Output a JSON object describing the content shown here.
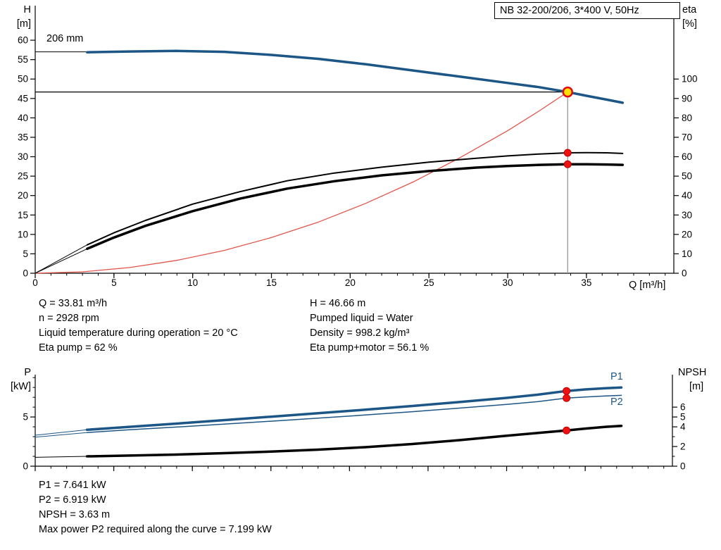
{
  "title_box": "NB 32-200/206, 3*400 V, 50Hz",
  "labels": {
    "impeller": "206 mm",
    "p1": "P1",
    "p2": "P2",
    "axis_h_top": "H",
    "axis_h_unit": "[m]",
    "axis_eta_top": "eta",
    "axis_eta_unit": "[%]",
    "axis_q": "Q [m³/h]",
    "axis_p_top": "P",
    "axis_p_unit": "[kW]",
    "axis_npsh_top": "NPSH",
    "axis_npsh_unit": "[m]"
  },
  "info_left": [
    "Q = 33.81 m³/h",
    "n = 2928 rpm",
    "Liquid temperature during operation = 20 °C",
    "Eta pump = 62 %"
  ],
  "info_right": [
    "H = 46.66 m",
    "Pumped liquid = Water",
    "Density = 998.2 kg/m³",
    "Eta pump+motor = 56.1 %"
  ],
  "info_bottom": [
    "P1 = 7.641 kW",
    "P2 = 6.919 kW",
    "NPSH = 3.63 m",
    "Max power P2 required along the curve = 7.199 kW"
  ],
  "colors": {
    "curve_blue": "#1c5687",
    "curve_black": "#000000",
    "curve_red": "#e2554b",
    "marker_red": "#ee1111",
    "marker_red_stroke": "#c00000",
    "marker_yellow": "#ffe000",
    "marker_yellow_stroke": "#e30613",
    "guide_gray": "#909090"
  },
  "chart_data": [
    {
      "id": "top",
      "type": "line",
      "title": "NB 32-200/206, 3*400 V, 50Hz",
      "x_axis": {
        "label": "Q [m³/h]",
        "range": [
          0,
          40.55
        ],
        "major_ticks": [
          0,
          5,
          10,
          15,
          20,
          25,
          30,
          35
        ],
        "minor_step": 1,
        "show_labels": true
      },
      "y_left": {
        "label": "H [m]",
        "range": [
          0,
          68.9
        ],
        "ticks": [
          0,
          5,
          10,
          15,
          20,
          25,
          30,
          35,
          40,
          45,
          50,
          55,
          60
        ]
      },
      "y_right": {
        "label": "eta [%]",
        "range": [
          0,
          137.8
        ],
        "ticks": [
          0,
          10,
          20,
          30,
          40,
          50,
          60,
          70,
          80,
          90,
          100
        ]
      },
      "grid": false,
      "duty_point": {
        "Q": 33.81,
        "H": 46.66,
        "eta_pump": 62,
        "eta_pump_motor": 56.1,
        "impeller": "206 mm"
      },
      "guides": [
        {
          "type": "h",
          "value": 46.66,
          "from": 0,
          "to": 33.81,
          "color": "#000000",
          "width": 1.2
        },
        {
          "type": "v",
          "value": 33.81,
          "from": 0,
          "to": 46.66,
          "color": "#909090",
          "width": 1.2
        }
      ],
      "series": [
        {
          "name": "head-leadin",
          "axis": "left",
          "color": "#000000",
          "width": 1,
          "points": [
            [
              0,
              57
            ],
            [
              3.3,
              57
            ]
          ]
        },
        {
          "name": "system-curve",
          "axis": "left",
          "color": "#e2554b",
          "width": 1.3,
          "points": [
            [
              0,
              0
            ],
            [
              3,
              0.37
            ],
            [
              6,
              1.47
            ],
            [
              9,
              3.31
            ],
            [
              12,
              5.88
            ],
            [
              15,
              9.19
            ],
            [
              18,
              13.2
            ],
            [
              21,
              18.0
            ],
            [
              24,
              23.5
            ],
            [
              27,
              29.8
            ],
            [
              30,
              36.7
            ],
            [
              32,
              41.8
            ],
            [
              33.81,
              46.66
            ]
          ]
        },
        {
          "name": "eta-pump-leadin",
          "axis": "left",
          "color": "#000000",
          "width": 1,
          "points": [
            [
              0,
              0
            ],
            [
              3.3,
              7.3
            ]
          ]
        },
        {
          "name": "eta-pump-motor-leadin",
          "axis": "left",
          "color": "#000000",
          "width": 1,
          "points": [
            [
              0,
              0
            ],
            [
              3.3,
              6.3
            ]
          ]
        },
        {
          "name": "eta-pump",
          "axis": "left",
          "color": "#000000",
          "width": 2,
          "points": [
            [
              3.3,
              7.3
            ],
            [
              5,
              10.4
            ],
            [
              7,
              13.6
            ],
            [
              10,
              17.8
            ],
            [
              13,
              21.0
            ],
            [
              16,
              23.8
            ],
            [
              19,
              25.8
            ],
            [
              22,
              27.3
            ],
            [
              25,
              28.6
            ],
            [
              28,
              29.6
            ],
            [
              30,
              30.2
            ],
            [
              32,
              30.7
            ],
            [
              33.81,
              31.0
            ],
            [
              35,
              31.05
            ],
            [
              36.3,
              31.0
            ],
            [
              37.3,
              30.85
            ]
          ]
        },
        {
          "name": "eta-pump-motor",
          "axis": "left",
          "color": "#000000",
          "width": 3.5,
          "points": [
            [
              3.3,
              6.3
            ],
            [
              5,
              9.2
            ],
            [
              7,
              12.2
            ],
            [
              10,
              16.0
            ],
            [
              13,
              19.2
            ],
            [
              16,
              21.8
            ],
            [
              19,
              23.7
            ],
            [
              22,
              25.2
            ],
            [
              25,
              26.3
            ],
            [
              28,
              27.2
            ],
            [
              30,
              27.6
            ],
            [
              32,
              27.9
            ],
            [
              33.81,
              28.05
            ],
            [
              35,
              28.05
            ],
            [
              36.3,
              28.0
            ],
            [
              37.3,
              27.9
            ]
          ]
        },
        {
          "name": "head-206mm",
          "axis": "left",
          "color": "#1c5687",
          "width": 3.5,
          "points": [
            [
              3.3,
              56.9
            ],
            [
              6,
              57.1
            ],
            [
              9,
              57.25
            ],
            [
              12,
              57.0
            ],
            [
              15,
              56.2
            ],
            [
              18,
              55.2
            ],
            [
              21,
              53.8
            ],
            [
              24,
              52.2
            ],
            [
              27,
              50.6
            ],
            [
              30,
              49.0
            ],
            [
              32,
              47.9
            ],
            [
              33.81,
              46.66
            ],
            [
              35,
              45.7
            ],
            [
              36.3,
              44.7
            ],
            [
              37.3,
              43.9
            ]
          ]
        }
      ],
      "markers": [
        {
          "name": "eta-pump-dot",
          "x": 33.81,
          "y": 31.0,
          "axis": "left",
          "r": 5,
          "fill": "#ee1111",
          "stroke": "#c00000",
          "stroke_width": 1
        },
        {
          "name": "eta-pump-motor-dot",
          "x": 33.81,
          "y": 28.05,
          "axis": "left",
          "r": 5,
          "fill": "#ee1111",
          "stroke": "#c00000",
          "stroke_width": 1
        },
        {
          "name": "duty-point-dot",
          "x": 33.81,
          "y": 46.66,
          "axis": "left",
          "r": 6.5,
          "fill": "#ffe000",
          "stroke": "#e30613",
          "stroke_width": 2.5
        }
      ]
    },
    {
      "id": "bottom",
      "type": "line",
      "title": "Power and NPSH curves",
      "x_axis": {
        "label": "",
        "range": [
          0,
          40.55
        ],
        "major_ticks": [
          0,
          5,
          10,
          15,
          20,
          25,
          30,
          35
        ],
        "minor_step": 1,
        "show_labels": false
      },
      "y_left": {
        "label": "P [kW]",
        "range": [
          0,
          9.3
        ],
        "ticks": [
          0,
          5
        ],
        "minor_ticks": [
          1,
          2,
          3,
          4,
          6,
          7,
          8,
          9
        ]
      },
      "y_right": {
        "label": "NPSH [m]",
        "range": [
          0,
          9.3
        ],
        "ticks": [
          0,
          2,
          4,
          5,
          6
        ],
        "minor_ticks": [
          1,
          3
        ]
      },
      "grid": false,
      "duty_point": {
        "Q": 33.81,
        "P1": 7.641,
        "P2": 6.919,
        "NPSH": 3.63
      },
      "guides": [],
      "series": [
        {
          "name": "p1-leadin",
          "axis": "left",
          "color": "#1c5687",
          "width": 1,
          "points": [
            [
              0,
              3.15
            ],
            [
              3.3,
              3.7
            ]
          ]
        },
        {
          "name": "p2-leadin",
          "axis": "left",
          "color": "#1c5687",
          "width": 1,
          "points": [
            [
              0,
              2.95
            ],
            [
              3.3,
              3.42
            ]
          ]
        },
        {
          "name": "npsh-leadin",
          "axis": "right",
          "color": "#000000",
          "width": 1,
          "points": [
            [
              0,
              0.9
            ],
            [
              3.3,
              1.0
            ]
          ]
        },
        {
          "name": "p2",
          "axis": "left",
          "color": "#1c5687",
          "width": 1.5,
          "points": [
            [
              3.3,
              3.42
            ],
            [
              6,
              3.7
            ],
            [
              9,
              3.98
            ],
            [
              12,
              4.27
            ],
            [
              15,
              4.57
            ],
            [
              18,
              4.88
            ],
            [
              21,
              5.2
            ],
            [
              24,
              5.54
            ],
            [
              27,
              5.9
            ],
            [
              30,
              6.28
            ],
            [
              32,
              6.56
            ],
            [
              33.81,
              6.919
            ],
            [
              35,
              7.03
            ],
            [
              36.3,
              7.13
            ],
            [
              37.3,
              7.2
            ]
          ]
        },
        {
          "name": "p1",
          "axis": "left",
          "color": "#1c5687",
          "width": 3.5,
          "points": [
            [
              3.3,
              3.7
            ],
            [
              6,
              4.0
            ],
            [
              9,
              4.33
            ],
            [
              12,
              4.68
            ],
            [
              15,
              5.03
            ],
            [
              18,
              5.38
            ],
            [
              21,
              5.74
            ],
            [
              24,
              6.12
            ],
            [
              27,
              6.52
            ],
            [
              30,
              6.94
            ],
            [
              32,
              7.27
            ],
            [
              33.81,
              7.641
            ],
            [
              35,
              7.8
            ],
            [
              36.3,
              7.93
            ],
            [
              37.3,
              8.0
            ]
          ]
        },
        {
          "name": "npsh",
          "axis": "right",
          "color": "#000000",
          "width": 3.5,
          "points": [
            [
              3.3,
              1.0
            ],
            [
              6,
              1.08
            ],
            [
              9,
              1.18
            ],
            [
              12,
              1.32
            ],
            [
              15,
              1.48
            ],
            [
              18,
              1.68
            ],
            [
              21,
              1.93
            ],
            [
              24,
              2.25
            ],
            [
              27,
              2.65
            ],
            [
              30,
              3.1
            ],
            [
              32,
              3.38
            ],
            [
              33.81,
              3.63
            ],
            [
              35,
              3.82
            ],
            [
              36.3,
              4.0
            ],
            [
              37.3,
              4.1
            ]
          ]
        }
      ],
      "markers": [
        {
          "name": "p1-dot",
          "x": 33.81,
          "y": 7.641,
          "axis": "left",
          "r": 5,
          "fill": "#ee1111",
          "stroke": "#c00000",
          "stroke_width": 1
        },
        {
          "name": "p2-dot",
          "x": 33.81,
          "y": 6.919,
          "axis": "left",
          "r": 5,
          "fill": "#ee1111",
          "stroke": "#c00000",
          "stroke_width": 1
        },
        {
          "name": "npsh-dot",
          "x": 33.81,
          "y": 3.63,
          "axis": "right",
          "r": 5,
          "fill": "#ee1111",
          "stroke": "#c00000",
          "stroke_width": 1
        }
      ]
    }
  ]
}
